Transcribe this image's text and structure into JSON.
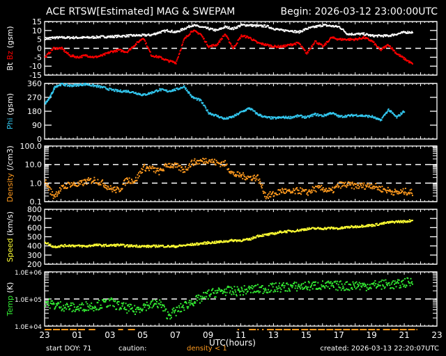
{
  "header": {
    "title": "ACE RTSW[Estimated] MAG & SWEPAM",
    "begin": "Begin: 2026-03-12 23:00:00UTC"
  },
  "footer": {
    "start_doy": "start DOY:  71",
    "caution": "caution:",
    "density_note": "density < 1",
    "created": "created: 2026-03-13 22:20:07UTC"
  },
  "colors": {
    "bt": "#ffffff",
    "bz": "#ff0000",
    "phi": "#33c8f0",
    "density": "#ff9a1e",
    "speed": "#ffff33",
    "temp": "#33ee33",
    "axes": "#ffffff",
    "background": "#000000"
  },
  "chart_data": [
    {
      "type": "scatter",
      "panel": "mag",
      "title": "ACE RTSW[Estimated] MAG & SWEPAM",
      "ylabel": [
        "Bt",
        "Bz",
        "(gsm)"
      ],
      "ylim": [
        -15,
        15
      ],
      "yticks": [
        15,
        10,
        5,
        0,
        -5,
        -10,
        -15
      ],
      "reference_lines": [
        0
      ],
      "x_unit": "hours since 2026-03-12 23:00 UTC",
      "series": [
        {
          "name": "Bt",
          "color": "#ffffff",
          "x": [
            0,
            0.5,
            1,
            1.5,
            2,
            2.5,
            3,
            3.5,
            4,
            4.5,
            5,
            5.5,
            6,
            6.5,
            7,
            7.5,
            8,
            8.5,
            9,
            9.5,
            10,
            10.5,
            11,
            11.5,
            12,
            12.5,
            13,
            13.5,
            14,
            14.5,
            15,
            15.5,
            16,
            16.5,
            17,
            17.5,
            18,
            18.5,
            19,
            19.5,
            20,
            20.5,
            21,
            21.5,
            22,
            22.5
          ],
          "y": [
            5.5,
            6,
            6,
            6,
            6,
            6,
            6.2,
            6.5,
            6.5,
            6.8,
            7,
            7.2,
            7.3,
            7.5,
            9,
            10,
            9,
            11,
            13,
            12,
            11,
            10,
            12,
            11,
            13,
            13,
            12.5,
            12.5,
            11,
            10,
            10,
            9,
            11,
            12,
            13,
            12.5,
            12,
            8,
            8,
            8,
            7,
            7,
            7,
            8,
            9,
            9
          ]
        },
        {
          "name": "Bz",
          "color": "#ff0000",
          "x": [
            0,
            0.5,
            1,
            1.5,
            2,
            2.5,
            3,
            3.5,
            4,
            4.5,
            5,
            5.5,
            6,
            6.5,
            7,
            7.5,
            8,
            8.5,
            9,
            9.5,
            10,
            10.5,
            11,
            11.5,
            12,
            12.5,
            13,
            13.5,
            14,
            14.5,
            15,
            15.5,
            16,
            16.5,
            17,
            17.5,
            18,
            18.5,
            19,
            19.5,
            20,
            20.5,
            21,
            21.5,
            22,
            22.5
          ],
          "y": [
            -5,
            0,
            0,
            -4,
            -5,
            -4,
            -5,
            -4,
            -2,
            -1,
            -2,
            2,
            6,
            -4,
            -5,
            -7,
            -8,
            5,
            10,
            8,
            1,
            2,
            8,
            0,
            7,
            6,
            3,
            2,
            1,
            1,
            2,
            3,
            -3,
            4,
            1,
            6,
            5,
            5,
            5,
            6,
            4,
            -1,
            2,
            -3,
            -6,
            -9
          ]
        }
      ]
    },
    {
      "type": "scatter",
      "panel": "phi",
      "ylabel": "Phi (gsm)",
      "ylim": [
        0,
        360
      ],
      "yticks": [
        360,
        270,
        180,
        90,
        0
      ],
      "series": [
        {
          "name": "Phi",
          "color": "#33c8f0",
          "x": [
            0,
            0.3,
            0.6,
            1,
            1.5,
            2,
            2.5,
            3,
            3.5,
            4,
            4.5,
            5,
            5.5,
            6,
            6.5,
            7,
            7.5,
            8,
            8.5,
            9,
            9.5,
            10,
            10.5,
            11,
            11.5,
            12,
            12.5,
            13,
            13.5,
            14,
            14.5,
            15,
            15.5,
            16,
            16.5,
            17,
            17.5,
            18,
            18.5,
            19,
            19.5,
            20,
            20.5,
            21,
            21.5,
            22
          ],
          "y": [
            230,
            270,
            340,
            355,
            345,
            350,
            355,
            345,
            335,
            320,
            310,
            310,
            300,
            285,
            300,
            320,
            310,
            320,
            340,
            270,
            250,
            170,
            150,
            130,
            145,
            175,
            200,
            160,
            140,
            135,
            140,
            140,
            150,
            140,
            160,
            150,
            170,
            145,
            150,
            155,
            150,
            145,
            120,
            190,
            140,
            185
          ]
        }
      ]
    },
    {
      "type": "scatter",
      "panel": "density",
      "ylabel": "Density (/cm3)",
      "yscale": "log",
      "ylim": [
        0.1,
        100
      ],
      "yticks": [
        "100.0",
        "10.0",
        "1.0",
        "0.1"
      ],
      "reference_lines": [
        1,
        10
      ],
      "series": [
        {
          "name": "Density",
          "color": "#ff9a1e",
          "x": [
            0,
            0.5,
            1,
            1.5,
            2,
            2.5,
            3,
            3.5,
            4,
            4.5,
            5,
            5.5,
            6,
            6.5,
            7,
            7.5,
            8,
            8.5,
            9,
            9.5,
            10,
            10.5,
            11,
            11.5,
            12,
            12.5,
            13,
            13.5,
            14,
            14.5,
            15,
            15.5,
            16,
            16.5,
            17,
            17.5,
            18,
            18.5,
            19,
            19.5,
            20,
            20.5,
            21,
            21.5,
            22,
            22.5
          ],
          "y": [
            1.2,
            0.2,
            0.5,
            0.9,
            0.8,
            1.2,
            1.5,
            1.0,
            0.5,
            0.4,
            1.5,
            1.3,
            7,
            6,
            4,
            10,
            8,
            5,
            13,
            15,
            18,
            12,
            11,
            3,
            2.5,
            2,
            2,
            0.2,
            0.25,
            0.4,
            0.3,
            0.4,
            0.3,
            0.5,
            0.5,
            0.35,
            0.8,
            0.8,
            0.7,
            0.7,
            0.75,
            0.5,
            0.4,
            0.3,
            0.35,
            0.3
          ]
        }
      ]
    },
    {
      "type": "scatter",
      "panel": "speed",
      "ylabel": "Speed (km/s)",
      "ylim": [
        200,
        800
      ],
      "yticks": [
        800,
        700,
        600,
        500,
        400,
        300,
        200
      ],
      "series": [
        {
          "name": "Speed",
          "color": "#ffff33",
          "x": [
            0,
            0.5,
            1,
            1.5,
            2,
            2.5,
            3,
            3.5,
            4,
            4.5,
            5,
            5.5,
            6,
            6.5,
            7,
            7.5,
            8,
            8.5,
            9,
            9.5,
            10,
            10.5,
            11,
            11.5,
            12,
            12.5,
            13,
            13.5,
            14,
            14.5,
            15,
            15.5,
            16,
            16.5,
            17,
            17.5,
            18,
            18.5,
            19,
            19.5,
            20,
            20.5,
            21,
            21.5,
            22,
            22.5
          ],
          "y": [
            440,
            390,
            400,
            405,
            400,
            395,
            410,
            405,
            405,
            410,
            400,
            400,
            395,
            395,
            400,
            395,
            395,
            405,
            415,
            425,
            435,
            440,
            450,
            460,
            460,
            470,
            510,
            520,
            535,
            555,
            560,
            570,
            585,
            590,
            590,
            595,
            590,
            605,
            610,
            620,
            625,
            640,
            655,
            665,
            665,
            680
          ]
        }
      ]
    },
    {
      "type": "scatter",
      "panel": "temp",
      "ylabel": "Temp (K)",
      "yscale": "log",
      "ylim": [
        10000,
        1000000
      ],
      "yticks": [
        "1.0E+06",
        "1.0E+05",
        "1.0E+04"
      ],
      "reference_lines": [
        100000
      ],
      "series": [
        {
          "name": "Temp",
          "color": "#33ee33",
          "x": [
            0,
            0.5,
            1,
            1.5,
            2,
            2.5,
            3,
            3.5,
            4,
            4.5,
            5,
            5.5,
            6,
            6.5,
            7,
            7.5,
            8,
            8.5,
            9,
            9.5,
            10,
            10.5,
            11,
            11.5,
            12,
            12.5,
            13,
            13.5,
            14,
            14.5,
            15,
            15.5,
            16,
            16.5,
            17,
            17.5,
            18,
            18.5,
            19,
            19.5,
            20,
            20.5,
            21,
            21.5,
            22,
            22.5
          ],
          "y": [
            80000,
            60000,
            55000,
            50000,
            45000,
            55000,
            55000,
            65000,
            75000,
            55000,
            45000,
            38000,
            55000,
            60000,
            70000,
            25000,
            35000,
            55000,
            80000,
            100000,
            150000,
            180000,
            200000,
            190000,
            200000,
            220000,
            230000,
            240000,
            260000,
            270000,
            280000,
            290000,
            300000,
            310000,
            320000,
            300000,
            310000,
            300000,
            330000,
            300000,
            320000,
            340000,
            350000,
            330000,
            400000,
            420000
          ]
        }
      ]
    }
  ],
  "x_axis": {
    "label": "UTC(hours)",
    "ticks": [
      "23",
      "01",
      "03",
      "05",
      "07",
      "09",
      "11",
      "13",
      "15",
      "17",
      "19",
      "21",
      "23"
    ],
    "range_hours": 24
  },
  "caution_segments": [
    [
      0,
      2.5
    ],
    [
      2.7,
      3.1
    ],
    [
      4.5,
      4.8
    ],
    [
      5.1,
      5.6
    ],
    [
      11.8,
      11.9
    ],
    [
      12.5,
      13.1
    ],
    [
      13.3,
      13.4
    ],
    [
      13.6,
      15.6
    ],
    [
      15.7,
      20.5
    ],
    [
      20.7,
      22.8
    ]
  ]
}
